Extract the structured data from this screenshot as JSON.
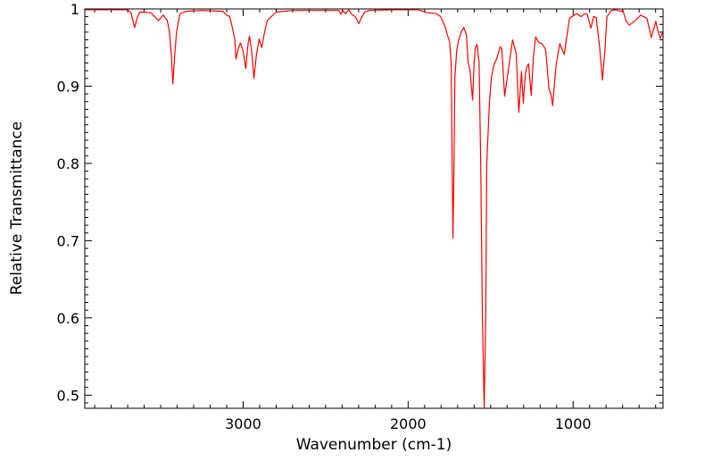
{
  "chart_data": {
    "type": "line",
    "title": "",
    "xlabel": "Wavenumber (cm-1)",
    "ylabel": "Relative Transmittance",
    "xlim": [
      3960,
      455
    ],
    "ylim": [
      0.483,
      1.0
    ],
    "x_reversed": true,
    "grid": false,
    "x_ticks": [
      3000,
      2000,
      1000
    ],
    "x_tick_labels": [
      "3000",
      "2000",
      "1000"
    ],
    "x_minor_step": 100,
    "y_ticks": [
      0.5,
      0.6,
      0.7,
      0.8,
      0.9,
      1.0
    ],
    "y_tick_labels": [
      "0.5",
      "0.6",
      "0.7",
      "0.8",
      "0.9",
      "1"
    ],
    "y_minor_step": 0.01,
    "series": [
      {
        "name": "spectrum",
        "color": "#ff0000",
        "points": [
          [
            3959,
            0.999
          ],
          [
            3700,
            0.999
          ],
          [
            3680,
            0.995
          ],
          [
            3658,
            0.976
          ],
          [
            3640,
            0.99
          ],
          [
            3625,
            0.996
          ],
          [
            3560,
            0.995
          ],
          [
            3512,
            0.985
          ],
          [
            3485,
            0.992
          ],
          [
            3460,
            0.985
          ],
          [
            3447,
            0.971
          ],
          [
            3435,
            0.94
          ],
          [
            3426,
            0.903
          ],
          [
            3415,
            0.94
          ],
          [
            3404,
            0.97
          ],
          [
            3383,
            0.994
          ],
          [
            3340,
            0.997
          ],
          [
            3250,
            0.998
          ],
          [
            3124,
            0.997
          ],
          [
            3100,
            0.992
          ],
          [
            3081,
            0.99
          ],
          [
            3065,
            0.975
          ],
          [
            3050,
            0.96
          ],
          [
            3043,
            0.935
          ],
          [
            3030,
            0.948
          ],
          [
            3016,
            0.956
          ],
          [
            3000,
            0.945
          ],
          [
            2984,
            0.923
          ],
          [
            2970,
            0.955
          ],
          [
            2962,
            0.965
          ],
          [
            2948,
            0.945
          ],
          [
            2935,
            0.91
          ],
          [
            2920,
            0.94
          ],
          [
            2903,
            0.961
          ],
          [
            2887,
            0.95
          ],
          [
            2870,
            0.97
          ],
          [
            2854,
            0.985
          ],
          [
            2801,
            0.996
          ],
          [
            2700,
            0.998
          ],
          [
            2585,
            0.998
          ],
          [
            2420,
            0.998
          ],
          [
            2407,
            0.993
          ],
          [
            2395,
            0.998
          ],
          [
            2380,
            0.994
          ],
          [
            2360,
            0.999
          ],
          [
            2342,
            0.993
          ],
          [
            2320,
            0.99
          ],
          [
            2299,
            0.981
          ],
          [
            2280,
            0.99
          ],
          [
            2262,
            0.996
          ],
          [
            2235,
            0.998
          ],
          [
            2100,
            0.999
          ],
          [
            1938,
            0.999
          ],
          [
            1884,
            0.995
          ],
          [
            1830,
            0.994
          ],
          [
            1803,
            0.99
          ],
          [
            1776,
            0.977
          ],
          [
            1760,
            0.965
          ],
          [
            1749,
            0.958
          ],
          [
            1739,
            0.93
          ],
          [
            1733,
            0.8
          ],
          [
            1728,
            0.703
          ],
          [
            1722,
            0.8
          ],
          [
            1717,
            0.91
          ],
          [
            1706,
            0.945
          ],
          [
            1696,
            0.958
          ],
          [
            1679,
            0.97
          ],
          [
            1663,
            0.976
          ],
          [
            1647,
            0.967
          ],
          [
            1636,
            0.93
          ],
          [
            1625,
            0.92
          ],
          [
            1609,
            0.882
          ],
          [
            1600,
            0.93
          ],
          [
            1593,
            0.95
          ],
          [
            1582,
            0.954
          ],
          [
            1570,
            0.93
          ],
          [
            1560,
            0.8
          ],
          [
            1550,
            0.6
          ],
          [
            1539,
            0.483
          ],
          [
            1530,
            0.6
          ],
          [
            1523,
            0.8
          ],
          [
            1507,
            0.88
          ],
          [
            1496,
            0.91
          ],
          [
            1480,
            0.928
          ],
          [
            1464,
            0.935
          ],
          [
            1442,
            0.951
          ],
          [
            1432,
            0.948
          ],
          [
            1415,
            0.887
          ],
          [
            1400,
            0.91
          ],
          [
            1388,
            0.928
          ],
          [
            1367,
            0.96
          ],
          [
            1345,
            0.942
          ],
          [
            1329,
            0.866
          ],
          [
            1313,
            0.919
          ],
          [
            1302,
            0.878
          ],
          [
            1290,
            0.915
          ],
          [
            1280,
            0.925
          ],
          [
            1270,
            0.929
          ],
          [
            1254,
            0.888
          ],
          [
            1240,
            0.94
          ],
          [
            1227,
            0.964
          ],
          [
            1210,
            0.957
          ],
          [
            1189,
            0.955
          ],
          [
            1167,
            0.948
          ],
          [
            1146,
            0.896
          ],
          [
            1135,
            0.89
          ],
          [
            1124,
            0.875
          ],
          [
            1103,
            0.928
          ],
          [
            1081,
            0.955
          ],
          [
            1054,
            0.941
          ],
          [
            1022,
            0.988
          ],
          [
            979,
            0.994
          ],
          [
            952,
            0.99
          ],
          [
            930,
            0.994
          ],
          [
            914,
            0.993
          ],
          [
            892,
            0.975
          ],
          [
            876,
            0.99
          ],
          [
            860,
            0.989
          ],
          [
            839,
            0.95
          ],
          [
            822,
            0.908
          ],
          [
            806,
            0.95
          ],
          [
            795,
            0.99
          ],
          [
            768,
            0.998
          ],
          [
            741,
            0.999
          ],
          [
            714,
            0.997
          ],
          [
            698,
            0.998
          ],
          [
            680,
            0.985
          ],
          [
            660,
            0.979
          ],
          [
            628,
            0.984
          ],
          [
            590,
            0.992
          ],
          [
            574,
            0.99
          ],
          [
            553,
            0.988
          ],
          [
            526,
            0.963
          ],
          [
            499,
            0.984
          ],
          [
            488,
            0.973
          ],
          [
            472,
            0.962
          ],
          [
            456,
            0.97
          ]
        ]
      }
    ]
  }
}
